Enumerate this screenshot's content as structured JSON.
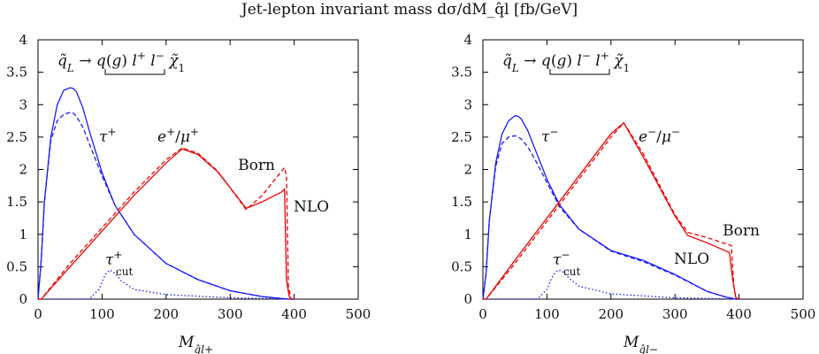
{
  "title": "Jet-lepton invariant mass dσ/dM_q̂l [fb/GeV]",
  "chart_data": [
    {
      "type": "line",
      "panel": "left",
      "xlabel": "M_q̂l+",
      "xlim": [
        0,
        500
      ],
      "ylim": [
        0,
        4
      ],
      "x_ticks": [
        0,
        100,
        200,
        300,
        400,
        500
      ],
      "y_ticks": [
        0,
        0.5,
        1,
        1.5,
        2,
        2.5,
        3,
        3.5,
        4
      ],
      "y_tick_labels": [
        "0",
        "0.5",
        "1",
        "1.5",
        "2",
        "2.5",
        "3",
        "3.5",
        "4"
      ],
      "process": "q̃_L → q(g) l⁺ l⁻ χ̃₁⁰",
      "annotations": [
        "τ⁺",
        "e⁺/μ⁺",
        "Born",
        "NLO",
        "τ⁺_cut"
      ],
      "colors": {
        "tau": "#1a1aff",
        "lepton": "#ee0000"
      },
      "series": [
        {
          "name": "τ⁺",
          "color": "#1a1aff",
          "dash": "solid",
          "x": [
            0,
            5,
            10,
            20,
            30,
            40,
            50,
            55,
            60,
            70,
            80,
            100,
            120,
            150,
            200,
            250,
            300,
            350,
            380,
            395,
            400
          ],
          "y": [
            0,
            0.6,
            1.5,
            2.5,
            3.0,
            3.22,
            3.26,
            3.25,
            3.2,
            2.95,
            2.6,
            1.95,
            1.45,
            1.0,
            0.55,
            0.3,
            0.13,
            0.04,
            0.01,
            0.0,
            0
          ]
        },
        {
          "name": "τ⁺ (dashed)",
          "color": "#1a1aff",
          "dash": "dashed",
          "x": [
            0,
            5,
            10,
            20,
            30,
            40,
            50,
            55,
            60,
            70,
            80,
            100,
            120,
            150,
            200,
            250,
            300,
            350,
            380,
            395,
            400
          ],
          "y": [
            0,
            0.6,
            1.5,
            2.45,
            2.75,
            2.85,
            2.88,
            2.87,
            2.82,
            2.65,
            2.4,
            1.9,
            1.45,
            1.0,
            0.55,
            0.3,
            0.13,
            0.04,
            0.01,
            0.0,
            0
          ]
        },
        {
          "name": "τ⁺_cut",
          "color": "#1a1aff",
          "dash": "dotted",
          "x": [
            0,
            80,
            95,
            105,
            112,
            120,
            130,
            150,
            200,
            300,
            400
          ],
          "y": [
            0,
            0,
            0.15,
            0.38,
            0.45,
            0.4,
            0.28,
            0.15,
            0.07,
            0.02,
            0
          ]
        },
        {
          "name": "e⁺/μ⁺ NLO",
          "color": "#ee0000",
          "dash": "solid",
          "x": [
            0,
            5,
            50,
            100,
            150,
            200,
            225,
            250,
            280,
            300,
            325,
            350,
            380,
            385,
            388,
            392,
            395,
            400
          ],
          "y": [
            0,
            0.0,
            0.5,
            1.05,
            1.6,
            2.1,
            2.32,
            2.23,
            1.97,
            1.72,
            1.4,
            1.5,
            1.65,
            1.7,
            0.3,
            0.05,
            0,
            0
          ]
        },
        {
          "name": "e⁺/μ⁺ Born",
          "color": "#ee0000",
          "dash": "dashed",
          "x": [
            0,
            5,
            50,
            100,
            150,
            200,
            225,
            250,
            280,
            300,
            325,
            350,
            385,
            388,
            391,
            395,
            400
          ],
          "y": [
            0,
            0.0,
            0.55,
            1.1,
            1.65,
            2.15,
            2.33,
            2.25,
            1.98,
            1.72,
            1.38,
            1.6,
            2.03,
            1.9,
            0.2,
            0,
            0
          ]
        }
      ]
    },
    {
      "type": "line",
      "panel": "right",
      "xlabel": "M_q̂l−",
      "xlim": [
        0,
        500
      ],
      "ylim": [
        0,
        4
      ],
      "x_ticks": [
        0,
        100,
        200,
        300,
        400,
        500
      ],
      "y_ticks": [
        0,
        0.5,
        1,
        1.5,
        2,
        2.5,
        3,
        3.5,
        4
      ],
      "y_tick_labels": [
        "0",
        "0.5",
        "1",
        "1.5",
        "2",
        "2.5",
        "3",
        "3.5",
        "4"
      ],
      "process": "q̃_L → q(g) l⁻ l⁺ χ̃₁⁰",
      "annotations": [
        "τ⁻",
        "e⁻/μ⁻",
        "Born",
        "NLO",
        "τ⁻_cut"
      ],
      "colors": {
        "tau": "#1a1aff",
        "lepton": "#ee0000"
      },
      "series": [
        {
          "name": "τ⁻",
          "color": "#1a1aff",
          "dash": "solid",
          "x": [
            0,
            5,
            10,
            20,
            30,
            40,
            50,
            55,
            60,
            70,
            80,
            100,
            120,
            150,
            200,
            250,
            300,
            350,
            380,
            395,
            400
          ],
          "y": [
            0,
            0.4,
            1.2,
            2.1,
            2.55,
            2.75,
            2.83,
            2.82,
            2.78,
            2.6,
            2.35,
            1.85,
            1.45,
            1.08,
            0.75,
            0.6,
            0.38,
            0.12,
            0.03,
            0.0,
            0
          ]
        },
        {
          "name": "τ⁻ (dashed)",
          "color": "#1a1aff",
          "dash": "dashed",
          "x": [
            0,
            5,
            10,
            20,
            30,
            40,
            50,
            55,
            60,
            70,
            80,
            100,
            120,
            150,
            200,
            250,
            300,
            350,
            380,
            395,
            400
          ],
          "y": [
            0,
            0.4,
            1.2,
            2.05,
            2.4,
            2.5,
            2.52,
            2.5,
            2.47,
            2.35,
            2.18,
            1.8,
            1.42,
            1.08,
            0.74,
            0.58,
            0.37,
            0.12,
            0.03,
            0.0,
            0
          ]
        },
        {
          "name": "τ⁻_cut",
          "color": "#1a1aff",
          "dash": "dotted",
          "x": [
            0,
            85,
            100,
            110,
            118,
            125,
            135,
            150,
            200,
            300,
            400
          ],
          "y": [
            0,
            0,
            0.15,
            0.38,
            0.45,
            0.42,
            0.32,
            0.2,
            0.08,
            0.02,
            0
          ]
        },
        {
          "name": "e⁻/μ⁻ NLO",
          "color": "#ee0000",
          "dash": "solid",
          "x": [
            0,
            5,
            50,
            100,
            150,
            200,
            220,
            250,
            300,
            320,
            350,
            385,
            390,
            395,
            400
          ],
          "y": [
            0,
            0.0,
            0.6,
            1.25,
            1.9,
            2.55,
            2.72,
            2.2,
            1.28,
            0.98,
            0.87,
            0.72,
            0.3,
            0.02,
            0
          ]
        },
        {
          "name": "e⁻/μ⁻ Born",
          "color": "#ee0000",
          "dash": "dashed",
          "x": [
            0,
            5,
            50,
            100,
            150,
            200,
            220,
            250,
            300,
            320,
            350,
            380,
            388,
            392,
            395,
            400
          ],
          "y": [
            0,
            0.0,
            0.55,
            1.2,
            1.85,
            2.5,
            2.72,
            2.25,
            1.3,
            1.03,
            0.95,
            0.85,
            0.83,
            0.2,
            0.02,
            0
          ]
        }
      ]
    }
  ]
}
